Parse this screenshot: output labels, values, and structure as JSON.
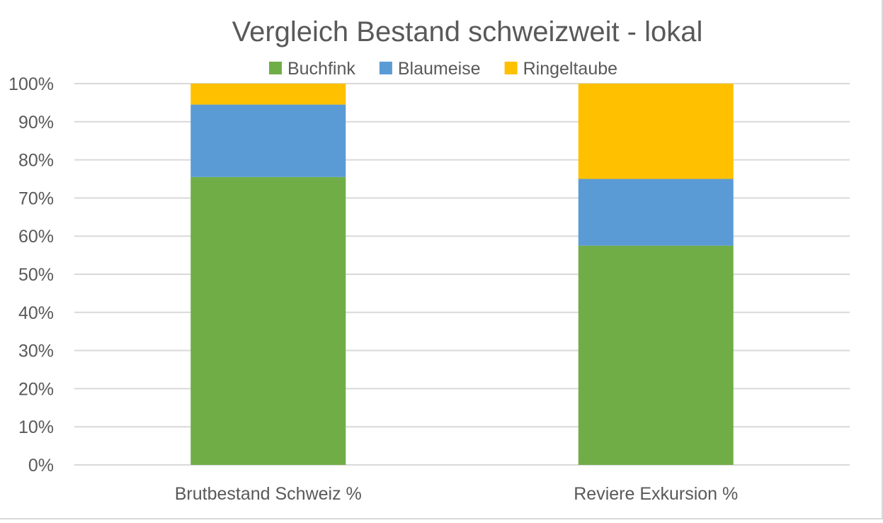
{
  "chart_data": {
    "type": "bar",
    "stacked": true,
    "title": "Vergleich Bestand schweizweit - lokal",
    "xlabel": "",
    "ylabel": "",
    "categories": [
      "Brutbestand Schweiz %",
      "Reviere Exkursion %"
    ],
    "series": [
      {
        "name": "Buchfink",
        "color": "#70ad47",
        "values": [
          75.5,
          57.5
        ]
      },
      {
        "name": "Blaumeise",
        "color": "#5b9bd5",
        "values": [
          19.0,
          17.5
        ]
      },
      {
        "name": "Ringeltaube",
        "color": "#ffc000",
        "values": [
          5.5,
          25.0
        ]
      }
    ],
    "ylim": [
      0,
      100
    ],
    "yticks": [
      0,
      10,
      20,
      30,
      40,
      50,
      60,
      70,
      80,
      90,
      100
    ],
    "ytick_labels": [
      "0%",
      "10%",
      "20%",
      "30%",
      "40%",
      "50%",
      "60%",
      "70%",
      "80%",
      "90%",
      "100%"
    ],
    "grid": true,
    "legend_position": "top"
  }
}
